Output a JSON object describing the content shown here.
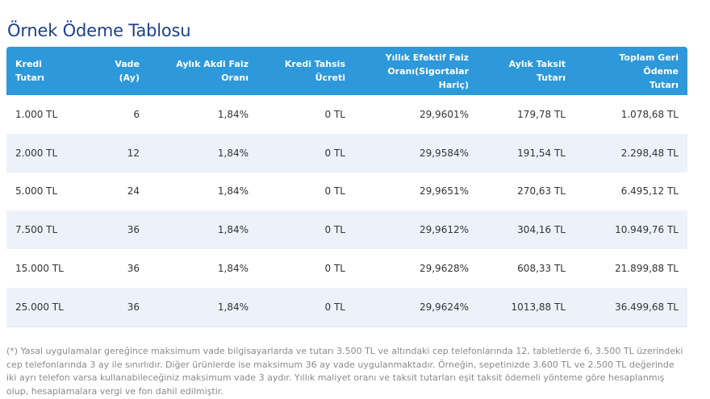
{
  "title": "Örnek Ödeme Tablosu",
  "headers": [
    {
      "line1": "Kredi",
      "line2": "Tutarı"
    },
    {
      "line1": "Vade",
      "line2": "(Ay)"
    },
    {
      "line1": "Aylık Akdi Faiz",
      "line2": "Oranı"
    },
    {
      "line1": "Kredi Tahsis",
      "line2": "Ücreti"
    },
    {
      "line1": "Yıllık Efektif Faiz",
      "line2": "Oranı(Sigortalar Hariç)"
    },
    {
      "line1": "Aylık Taksit",
      "line2": "Tutarı"
    },
    {
      "line1": "Toplam Geri Ödeme",
      "line2": "Tutarı"
    }
  ],
  "rows": [
    [
      "1.000 TL",
      "6",
      "1,84%",
      "0 TL",
      "29,9601%",
      "179,78 TL",
      "1.078,68 TL"
    ],
    [
      "2.000 TL",
      "12",
      "1,84%",
      "0 TL",
      "29,9584%",
      "191,54 TL",
      "2.298,48 TL"
    ],
    [
      "5.000 TL",
      "24",
      "1,84%",
      "0 TL",
      "29,9651%",
      "270,63 TL",
      "6.495,12 TL"
    ],
    [
      "7.500 TL",
      "36",
      "1,84%",
      "0 TL",
      "29,9612%",
      "304,16 TL",
      "10.949,76 TL"
    ],
    [
      "15.000 TL",
      "36",
      "1,84%",
      "0 TL",
      "29,9628%",
      "608,33 TL",
      "21.899,88 TL"
    ],
    [
      "25.000 TL",
      "36",
      "1,84%",
      "0 TL",
      "29,9624%",
      "1013,88 TL",
      "36.499,68 TL"
    ]
  ],
  "footnote": "(*) Yasal uygulamalar gereğince maksimum vade bilgisayarlarda ve tutarı 3.500 TL ve altındaki cep telefonlarında 12, tabletlerde 6, 3.500 TL üzerindeki cep telefonlarında 3 ay ile sınırlıdır. Diğer ürünlerde ise maksimum 36 ay vade uygulanmaktadır. Örneğin, sepetinizde 3.600 TL ve 2.500 TL değerinde iki ayrı telefon varsa kullanabileceğiniz maksimum vade 3 aydır. Yıllık maliyet oranı ve taksit tutarları eşit taksit ödemeli yönteme göre hesaplanmış olup, hesaplamalara vergi ve fon dahil edilmiştir.",
  "colors": {
    "title": "#1c3f8f",
    "header_bg": "#2d98da",
    "row_alt": "#edf2fa",
    "footnote": "#8a8a8a"
  }
}
